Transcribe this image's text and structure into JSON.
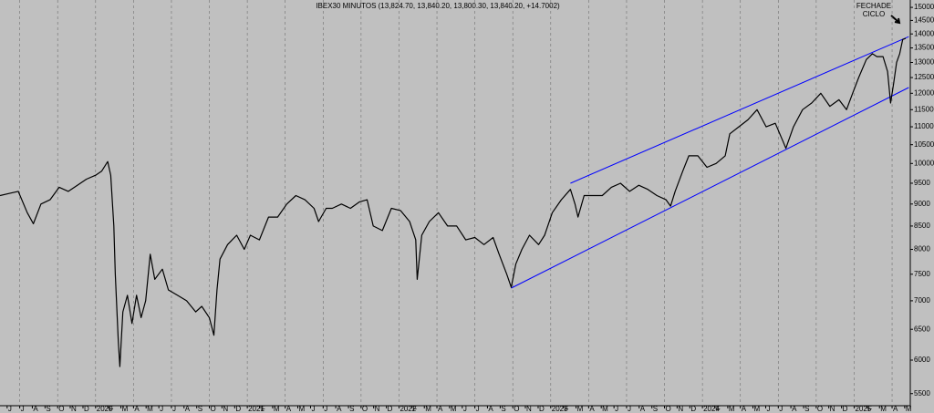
{
  "chart_data": {
    "type": "line",
    "title": "IBEX30 MINUTOS (13,824.70, 13,840.20, 13,800.30, 13,840.20, +14.7002)",
    "annotation": {
      "lines": [
        "FECHADE",
        "CICLO"
      ]
    },
    "log_scale": true,
    "xgrid": true,
    "ylim": [
      5330,
      15290
    ],
    "yticks": [
      5500,
      6000,
      6500,
      7000,
      7500,
      8000,
      8500,
      9000,
      9500,
      10000,
      10500,
      11000,
      11500,
      12000,
      12500,
      13000,
      13500,
      14000,
      14500,
      15000
    ],
    "xlim": [
      2019.37,
      2025.37
    ],
    "xticks": [
      {
        "value": 2019.417,
        "label": "J"
      },
      {
        "value": 2019.5,
        "label": "J"
      },
      {
        "value": 2019.583,
        "label": "A"
      },
      {
        "value": 2019.667,
        "label": "S"
      },
      {
        "value": 2019.75,
        "label": "O"
      },
      {
        "value": 2019.833,
        "label": "N"
      },
      {
        "value": 2019.917,
        "label": "D"
      },
      2020,
      {
        "value": 2020.083,
        "label": "F"
      },
      {
        "value": 2020.167,
        "label": "M"
      },
      {
        "value": 2020.25,
        "label": "A"
      },
      {
        "value": 2020.333,
        "label": "M"
      },
      {
        "value": 2020.417,
        "label": "J"
      },
      {
        "value": 2020.5,
        "label": "J"
      },
      {
        "value": 2020.583,
        "label": "A"
      },
      {
        "value": 2020.667,
        "label": "S"
      },
      {
        "value": 2020.75,
        "label": "O"
      },
      {
        "value": 2020.833,
        "label": "N"
      },
      {
        "value": 2020.917,
        "label": "D"
      },
      2021,
      {
        "value": 2021.083,
        "label": "F"
      },
      {
        "value": 2021.167,
        "label": "M"
      },
      {
        "value": 2021.25,
        "label": "A"
      },
      {
        "value": 2021.333,
        "label": "M"
      },
      {
        "value": 2021.417,
        "label": "J"
      },
      {
        "value": 2021.5,
        "label": "J"
      },
      {
        "value": 2021.583,
        "label": "A"
      },
      {
        "value": 2021.667,
        "label": "S"
      },
      {
        "value": 2021.75,
        "label": "O"
      },
      {
        "value": 2021.833,
        "label": "N"
      },
      {
        "value": 2021.917,
        "label": "D"
      },
      2022,
      {
        "value": 2022.083,
        "label": "F"
      },
      {
        "value": 2022.167,
        "label": "M"
      },
      {
        "value": 2022.25,
        "label": "A"
      },
      {
        "value": 2022.333,
        "label": "M"
      },
      {
        "value": 2022.417,
        "label": "J"
      },
      {
        "value": 2022.5,
        "label": "J"
      },
      {
        "value": 2022.583,
        "label": "A"
      },
      {
        "value": 2022.667,
        "label": "S"
      },
      {
        "value": 2022.75,
        "label": "O"
      },
      {
        "value": 2022.833,
        "label": "N"
      },
      {
        "value": 2022.917,
        "label": "D"
      },
      2023,
      {
        "value": 2023.083,
        "label": "F"
      },
      {
        "value": 2023.167,
        "label": "M"
      },
      {
        "value": 2023.25,
        "label": "A"
      },
      {
        "value": 2023.333,
        "label": "M"
      },
      {
        "value": 2023.417,
        "label": "J"
      },
      {
        "value": 2023.5,
        "label": "J"
      },
      {
        "value": 2023.583,
        "label": "A"
      },
      {
        "value": 2023.667,
        "label": "S"
      },
      {
        "value": 2023.75,
        "label": "O"
      },
      {
        "value": 2023.833,
        "label": "N"
      },
      {
        "value": 2023.917,
        "label": "D"
      },
      2024,
      {
        "value": 2024.083,
        "label": "F"
      },
      {
        "value": 2024.167,
        "label": "M"
      },
      {
        "value": 2024.25,
        "label": "A"
      },
      {
        "value": 2024.333,
        "label": "M"
      },
      {
        "value": 2024.417,
        "label": "J"
      },
      {
        "value": 2024.5,
        "label": "J"
      },
      {
        "value": 2024.583,
        "label": "A"
      },
      {
        "value": 2024.667,
        "label": "S"
      },
      {
        "value": 2024.75,
        "label": "O"
      },
      {
        "value": 2024.833,
        "label": "N"
      },
      {
        "value": 2024.917,
        "label": "D"
      },
      2025,
      {
        "value": 2025.083,
        "label": "F"
      },
      {
        "value": 2025.167,
        "label": "M"
      },
      {
        "value": 2025.25,
        "label": "A"
      },
      {
        "value": 2025.333,
        "label": "M"
      }
    ],
    "x": [
      2019.37,
      2019.43,
      2019.49,
      2019.55,
      2019.59,
      2019.64,
      2019.7,
      2019.76,
      2019.82,
      2019.88,
      2019.94,
      2020.0,
      2020.04,
      2020.08,
      2020.1,
      2020.12,
      2020.13,
      2020.15,
      2020.16,
      2020.18,
      2020.21,
      2020.24,
      2020.27,
      2020.3,
      2020.33,
      2020.36,
      2020.39,
      2020.44,
      2020.48,
      2020.54,
      2020.6,
      2020.66,
      2020.7,
      2020.75,
      2020.78,
      2020.8,
      2020.82,
      2020.87,
      2020.93,
      2020.98,
      2021.02,
      2021.08,
      2021.14,
      2021.2,
      2021.26,
      2021.32,
      2021.38,
      2021.44,
      2021.47,
      2021.52,
      2021.56,
      2021.62,
      2021.68,
      2021.74,
      2021.79,
      2021.83,
      2021.89,
      2021.95,
      2022.01,
      2022.07,
      2022.11,
      2022.12,
      2022.15,
      2022.2,
      2022.26,
      2022.32,
      2022.38,
      2022.44,
      2022.5,
      2022.56,
      2022.62,
      2022.66,
      2022.71,
      2022.74,
      2022.77,
      2022.81,
      2022.86,
      2022.92,
      2022.96,
      2023.01,
      2023.07,
      2023.13,
      2023.16,
      2023.18,
      2023.22,
      2023.28,
      2023.34,
      2023.4,
      2023.46,
      2023.52,
      2023.58,
      2023.64,
      2023.7,
      2023.76,
      2023.79,
      2023.82,
      2023.87,
      2023.91,
      2023.97,
      2024.03,
      2024.09,
      2024.15,
      2024.18,
      2024.24,
      2024.3,
      2024.36,
      2024.42,
      2024.48,
      2024.53,
      2024.55,
      2024.6,
      2024.66,
      2024.72,
      2024.78,
      2024.84,
      2024.9,
      2024.95,
      2024.99,
      2025.03,
      2025.08,
      2025.12,
      2025.15,
      2025.19,
      2025.22,
      2025.24,
      2025.26,
      2025.28,
      2025.3,
      2025.32,
      2025.34
    ],
    "series": [
      {
        "color": "#000000",
        "values": [
          9200,
          9250,
          9300,
          8800,
          8550,
          9000,
          9100,
          9400,
          9300,
          9450,
          9600,
          9700,
          9800,
          10050,
          9700,
          8500,
          7500,
          6300,
          5900,
          6800,
          7100,
          6600,
          7100,
          6700,
          7000,
          7900,
          7400,
          7600,
          7200,
          7100,
          7000,
          6800,
          6900,
          6700,
          6400,
          7200,
          7800,
          8100,
          8300,
          8000,
          8300,
          8200,
          8700,
          8700,
          9000,
          9200,
          9100,
          8900,
          8600,
          8900,
          8900,
          9000,
          8900,
          9050,
          9100,
          8500,
          8400,
          8900,
          8850,
          8600,
          8200,
          7400,
          8300,
          8600,
          8800,
          8500,
          8500,
          8200,
          8250,
          8100,
          8250,
          7900,
          7500,
          7250,
          7700,
          8000,
          8300,
          8100,
          8300,
          8800,
          9100,
          9350,
          9000,
          8700,
          9200,
          9200,
          9200,
          9400,
          9500,
          9300,
          9450,
          9350,
          9200,
          9100,
          8950,
          9300,
          9800,
          10200,
          10200,
          9900,
          10000,
          10200,
          10800,
          11000,
          11200,
          11500,
          11000,
          11100,
          10600,
          10400,
          11000,
          11500,
          11700,
          12000,
          11600,
          11800,
          11500,
          12000,
          12500,
          13100,
          13300,
          13200,
          13200,
          12700,
          11700,
          12300,
          13000,
          13300,
          13800,
          13840
        ]
      }
    ],
    "trendlines": [
      {
        "color": "#0000ff",
        "x": [
          2023.13,
          2025.36
        ],
        "values": [
          9500,
          13900
        ]
      },
      {
        "color": "#0000ff",
        "x": [
          2022.74,
          2025.36
        ],
        "values": [
          7235,
          12180
        ]
      }
    ]
  }
}
